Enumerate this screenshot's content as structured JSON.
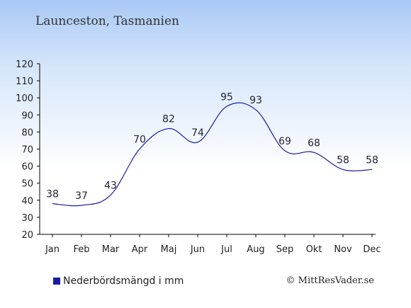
{
  "title": "Launceston, Tasmanien",
  "legend": {
    "label": "Nederbördsmängd i mm"
  },
  "credit": "© MittResVader.se",
  "colors": {
    "line": "#1a1aa8",
    "legend_swatch": "#1a1aa8",
    "axis": "#000000"
  },
  "chart_data": {
    "type": "line",
    "title": "Launceston, Tasmanien",
    "categories": [
      "Jan",
      "Feb",
      "Mar",
      "Apr",
      "Maj",
      "Jun",
      "Jul",
      "Aug",
      "Sep",
      "Okt",
      "Nov",
      "Dec"
    ],
    "series": [
      {
        "name": "Nederbördsmängd i mm",
        "values": [
          38,
          37,
          43,
          70,
          82,
          74,
          95,
          93,
          69,
          68,
          58,
          58
        ]
      }
    ],
    "ylim": [
      20,
      120
    ],
    "yticks": [
      20,
      30,
      40,
      50,
      60,
      70,
      80,
      90,
      100,
      110,
      120
    ],
    "xlabel": "",
    "ylabel": "",
    "grid": false,
    "legend_position": "bottom-left"
  }
}
